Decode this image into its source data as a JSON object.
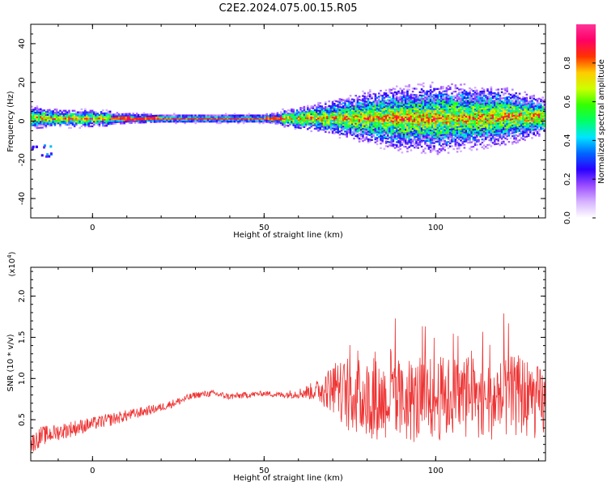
{
  "title": "C2E2.2024.075.00.15.R05",
  "chart_data": [
    {
      "type": "heatmap",
      "xlabel": "Height of straight line (km)",
      "ylabel": "Frequency (Hz)",
      "xlim": [
        -18,
        132
      ],
      "ylim": [
        -50,
        50
      ],
      "xticks": [
        0,
        50,
        100
      ],
      "xtick_labels": [
        "0",
        "50",
        "100"
      ],
      "yticks": [
        40,
        20,
        0,
        -20,
        -40
      ],
      "ytick_labels": [
        "40",
        "20",
        "0",
        "-20",
        "-40"
      ],
      "colorbar": {
        "label": "Normalized spectral amplitude",
        "ticks": [
          0.0,
          0.2,
          0.4,
          0.6,
          0.8
        ],
        "tick_labels": [
          "0.0",
          "0.2",
          "0.4",
          "0.6",
          "0.8"
        ],
        "range": [
          0,
          1
        ],
        "colors": [
          "#ffffff",
          "#d6b3ff",
          "#9b4dff",
          "#2a00ff",
          "#0066ff",
          "#00e5ff",
          "#00ff66",
          "#33ff00",
          "#ccff00",
          "#ffcc00",
          "#ff3300",
          "#ff0066",
          "#ff3399"
        ]
      },
      "band_profile": {
        "x": [
          -18,
          -10,
          0,
          10,
          20,
          30,
          40,
          50,
          55,
          60,
          70,
          80,
          90,
          100,
          110,
          120,
          132
        ],
        "center_hz": [
          1.5,
          1.0,
          1.0,
          1.0,
          1.0,
          1.0,
          1.0,
          1.0,
          1.0,
          1.0,
          1.5,
          1.5,
          1.0,
          1.0,
          1.5,
          2.0,
          2.0
        ],
        "halfwidth_hz": [
          4,
          3,
          3,
          2.5,
          2,
          2,
          2,
          2,
          3,
          4,
          6,
          9,
          11,
          12,
          11,
          10,
          6
        ]
      },
      "annotation": "streak near -14 km, -12 to -18 Hz"
    },
    {
      "type": "line",
      "xlabel": "Height of straight line (km)",
      "ylabel": "SNR (10 * v/v)",
      "y_multiplier_label": "(x10",
      "y_multiplier_exp": "4",
      "y_multiplier_close": ")",
      "xlim": [
        -18,
        132
      ],
      "ylim": [
        0,
        2.35
      ],
      "xticks": [
        0,
        50,
        100
      ],
      "xtick_labels": [
        "0",
        "50",
        "100"
      ],
      "yticks": [
        0.5,
        1.0,
        1.5,
        2.0
      ],
      "ytick_labels": [
        "0.5",
        "1.0",
        "1.5",
        "2.0"
      ],
      "color": "#ee3333",
      "series": [
        {
          "x": [
            -18,
            -15,
            -10,
            -5,
            0,
            5,
            10,
            15,
            20,
            25,
            30,
            35,
            40,
            45,
            50,
            55,
            60,
            65,
            70,
            75,
            80,
            85,
            90,
            95,
            100,
            105,
            110,
            115,
            120,
            125,
            130,
            132
          ],
          "values": [
            0.2,
            0.3,
            0.35,
            0.4,
            0.45,
            0.5,
            0.55,
            0.6,
            0.65,
            0.72,
            0.8,
            0.82,
            0.78,
            0.8,
            0.82,
            0.8,
            0.82,
            0.85,
            0.88,
            0.8,
            0.75,
            0.75,
            0.72,
            0.72,
            0.75,
            0.78,
            0.78,
            0.75,
            0.75,
            0.8,
            0.7,
            0.7
          ],
          "noise": [
            0.12,
            0.12,
            0.1,
            0.1,
            0.08,
            0.08,
            0.07,
            0.06,
            0.05,
            0.05,
            0.04,
            0.04,
            0.04,
            0.04,
            0.03,
            0.04,
            0.06,
            0.12,
            0.3,
            0.45,
            0.5,
            0.5,
            0.5,
            0.52,
            0.52,
            0.5,
            0.5,
            0.5,
            0.5,
            0.5,
            0.45,
            0.45
          ]
        }
      ]
    }
  ]
}
